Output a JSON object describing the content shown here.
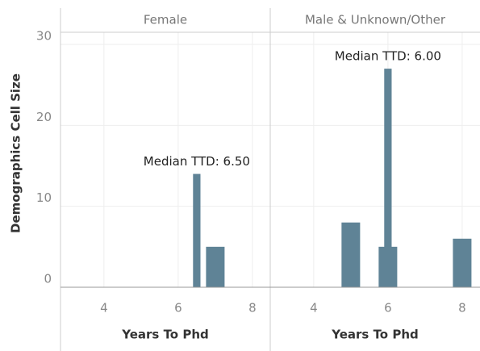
{
  "chart_data": {
    "type": "bar",
    "y_label": "Demographics Cell Size",
    "x_label": "Years To Phd",
    "ylim": [
      0,
      30.3
    ],
    "yticks": [
      0,
      10,
      20,
      30
    ],
    "xlim": [
      2.83,
      8.48
    ],
    "xticks": [
      4,
      6,
      8
    ],
    "color": "#5f8396",
    "grid": true,
    "facets": [
      {
        "title": "Female",
        "x": [
          7
        ],
        "values": [
          5
        ],
        "median_x": 6.5,
        "median_value": 14,
        "annotation": "Median TTD: 6.50"
      },
      {
        "title": "Male & Unknown/Other",
        "x": [
          5,
          6,
          8
        ],
        "values": [
          8,
          5,
          6
        ],
        "median_x": 6,
        "median_value": 27,
        "annotation": "Median TTD: 6.00"
      }
    ]
  }
}
